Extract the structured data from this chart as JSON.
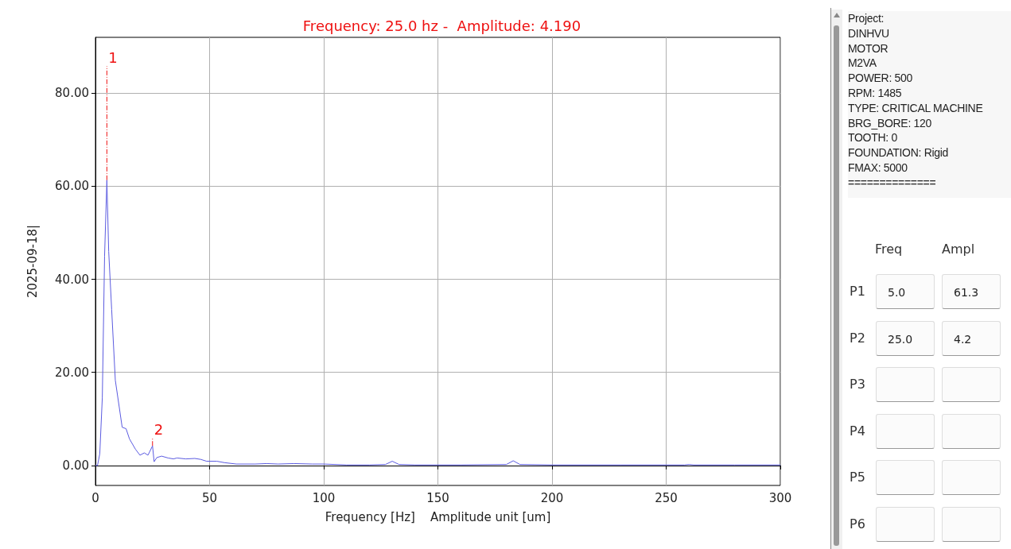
{
  "chart_data": {
    "type": "line",
    "title": "Frequency: 25.0 hz -  Amplitude: 4.190",
    "xlabel": "Frequency [Hz]    Amplitude unit [um]",
    "ylabel": "2025-09-18|",
    "x": [
      0,
      0.9,
      1.9,
      3.0,
      4.0,
      5.0,
      5.8,
      7.1,
      8.7,
      10.4,
      11.7,
      13.4,
      14.9,
      17.5,
      19.5,
      21.4,
      23.0,
      25.0,
      25.7,
      26.9,
      29.0,
      31.8,
      34.2,
      35.7,
      39.6,
      43.5,
      46.1,
      48.7,
      53.2,
      56.5,
      61.7,
      70,
      75,
      80,
      87,
      95,
      100,
      110,
      120,
      127,
      130,
      133,
      140,
      160,
      180,
      183,
      186,
      200,
      230,
      258,
      260,
      262,
      280,
      300
    ],
    "series": [
      {
        "color": "#5b5be0",
        "values": [
          0,
          0,
          2.5,
          14.5,
          45,
          61.3,
          46,
          33.5,
          18.3,
          12.6,
          8.2,
          7.9,
          5.7,
          3.5,
          2.2,
          2.7,
          2.2,
          4.2,
          0.8,
          1.7,
          2.0,
          1.6,
          1.4,
          1.6,
          1.4,
          1.5,
          1.3,
          0.9,
          0.9,
          0.6,
          0.3,
          0.3,
          0.4,
          0.3,
          0.4,
          0.3,
          0.3,
          0.1,
          0.1,
          0.2,
          0.9,
          0.2,
          0.1,
          0.1,
          0.2,
          1.0,
          0.2,
          0.1,
          0.1,
          0.1,
          0.2,
          0.1,
          0.1,
          0.1
        ]
      }
    ],
    "xlim": [
      0,
      300
    ],
    "xticks": [
      0,
      50,
      100,
      150,
      200,
      250,
      300
    ],
    "ylim": [
      -4.3,
      92
    ],
    "yticks": [
      {
        "value": 0,
        "label": "0.00"
      },
      {
        "value": 20,
        "label": "20.00"
      },
      {
        "value": 40,
        "label": "40.00"
      },
      {
        "value": 60,
        "label": "60.00"
      },
      {
        "value": 80,
        "label": "80.00"
      }
    ],
    "grid": true,
    "marker": "none",
    "line_style": "solid",
    "annotations": [
      {
        "text": "1",
        "x": 5.0,
        "y": 61.3
      },
      {
        "text": "2",
        "x": 25.0,
        "y": 4.2
      },
      "Project:\nDINHVU\nMOTOR\nM2VA\nPOWER: 500\nRPM: 1485\nTYPE: CRITICAL MACHINE\nBRG_BORE: 120\nTOOTH: 0\nFOUNDATION: Rigid\nFMAX: 5000\n==============",
      "Freq",
      "Ampl",
      "P1",
      "5.0",
      "61.3",
      "P2",
      "25.0",
      "4.2",
      "P3",
      "P4",
      "P5",
      "P6"
    ]
  }
}
